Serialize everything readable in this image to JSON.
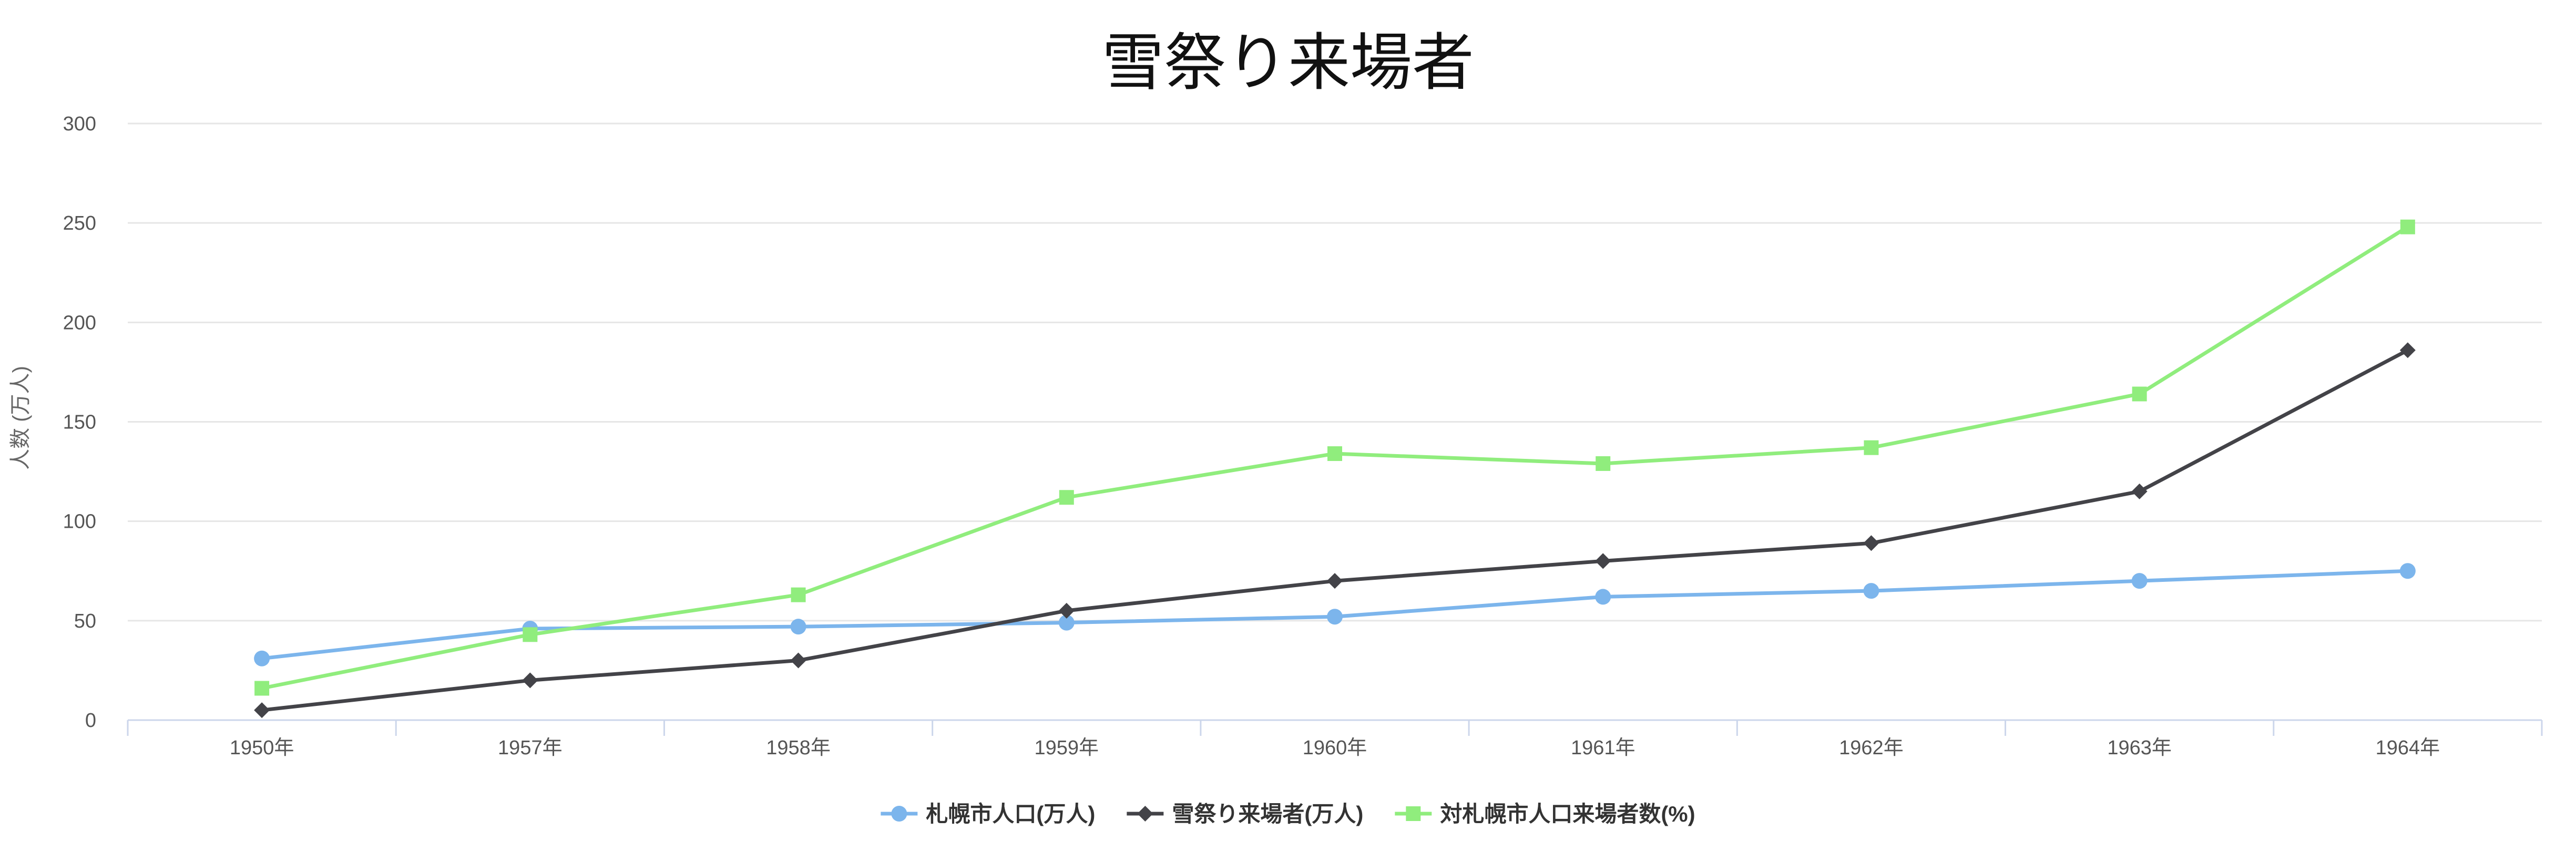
{
  "chart_data": {
    "type": "line",
    "title": "雪祭り来場者",
    "ylabel": "人数 (万人)",
    "xlabel": "",
    "categories": [
      "1950年",
      "1957年",
      "1958年",
      "1959年",
      "1960年",
      "1961年",
      "1962年",
      "1963年",
      "1964年"
    ],
    "ylim": [
      0,
      300
    ],
    "yticks": [
      "0",
      "50",
      "100",
      "150",
      "200",
      "250",
      "300"
    ],
    "grid": true,
    "legend_position": "bottom-center",
    "series": [
      {
        "name": "札幌市人口(万人)",
        "values": [
          31,
          46,
          47,
          49,
          52,
          62,
          65,
          70,
          75
        ],
        "color": "#7cb5ec",
        "marker": "circle"
      },
      {
        "name": "雪祭り来場者(万人)",
        "values": [
          5,
          20,
          30,
          55,
          70,
          80,
          89,
          115,
          186
        ],
        "color": "#434348",
        "marker": "diamond"
      },
      {
        "name": "対札幌市人口来場者数(%)",
        "values": [
          16,
          43,
          63,
          112,
          134,
          129,
          137,
          164,
          248
        ],
        "color": "#90ed7d",
        "marker": "square"
      }
    ]
  }
}
